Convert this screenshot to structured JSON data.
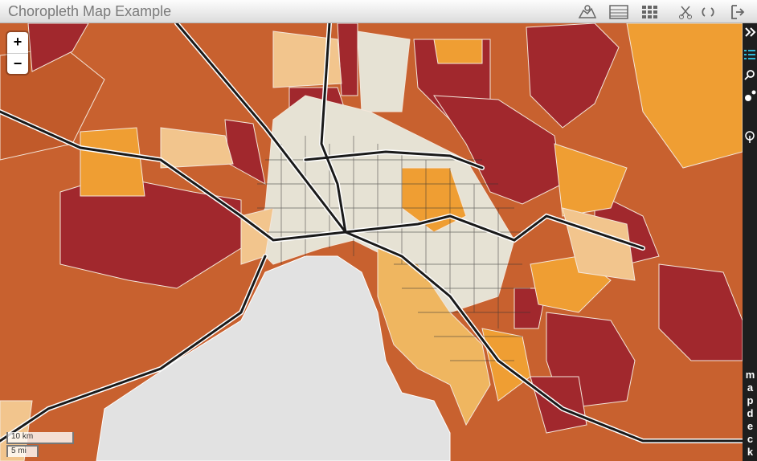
{
  "header": {
    "title": "Choropleth Map Example"
  },
  "zoom": {
    "in": "+",
    "out": "−"
  },
  "scale": {
    "metric": "10 km",
    "imperial": "5 mi"
  },
  "sidebar": {
    "brand": "mapdeck"
  }
}
